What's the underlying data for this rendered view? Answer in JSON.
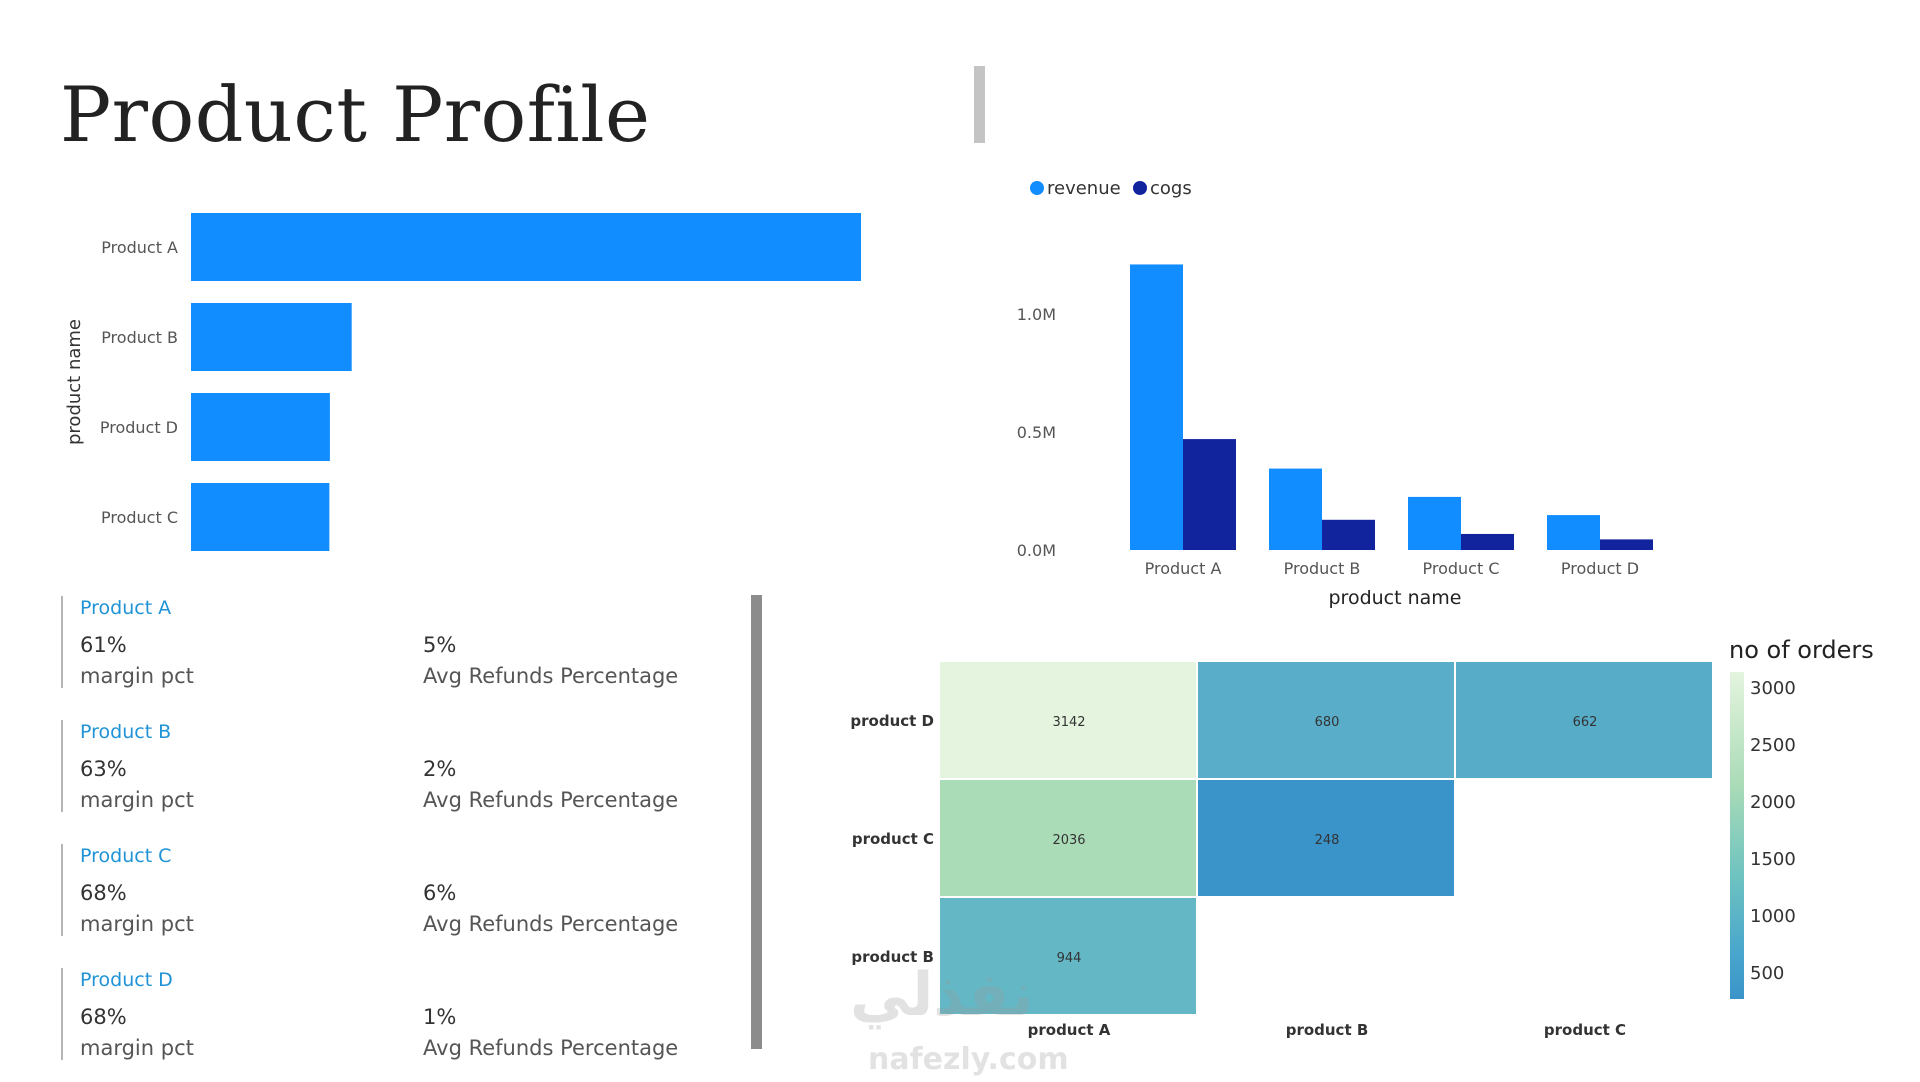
{
  "title": "Product Profile",
  "colors": {
    "revenue": "#118dff",
    "cogs": "#12239e",
    "bar": "#118dff",
    "card_title": "#1f93d6"
  },
  "chart_data": [
    {
      "type": "bar",
      "orientation": "horizontal",
      "categories": [
        "Product A",
        "Product B",
        "Product D",
        "Product C"
      ],
      "values": [
        1.23,
        0.295,
        0.255,
        0.254
      ],
      "ylabel": "product name"
    },
    {
      "type": "bar",
      "categories": [
        "Product A",
        "Product B",
        "Product C",
        "Product D"
      ],
      "series": [
        {
          "name": "revenue",
          "values": [
            1.21,
            0.345,
            0.225,
            0.148
          ]
        },
        {
          "name": "cogs",
          "values": [
            0.47,
            0.128,
            0.068,
            0.045
          ]
        }
      ],
      "xlabel": "product name",
      "y_ticks": [
        "0.0M",
        "0.5M",
        "1.0M"
      ],
      "ylim": [
        0,
        1.3
      ],
      "legend": "top-left"
    },
    {
      "type": "heatmap",
      "rows": [
        "product D",
        "product C",
        "product B"
      ],
      "cols": [
        "product A",
        "product B",
        "product C"
      ],
      "values": [
        [
          3142,
          680,
          662
        ],
        [
          2036,
          248,
          null
        ],
        [
          944,
          null,
          null
        ]
      ],
      "colorbar_title": "no of orders",
      "colorbar_ticks": [
        "3000",
        "2500",
        "2000",
        "1500",
        "1000",
        "500"
      ],
      "range": [
        248,
        3142
      ]
    }
  ],
  "cards": [
    {
      "name": "Product A",
      "margin": "61%",
      "margin_label": "margin pct",
      "refund": "5%",
      "refund_label": "Avg Refunds Percentage"
    },
    {
      "name": "Product B",
      "margin": "63%",
      "margin_label": "margin pct",
      "refund": "2%",
      "refund_label": "Avg Refunds Percentage"
    },
    {
      "name": "Product C",
      "margin": "68%",
      "margin_label": "margin pct",
      "refund": "6%",
      "refund_label": "Avg Refunds Percentage"
    },
    {
      "name": "Product D",
      "margin": "68%",
      "margin_label": "margin pct",
      "refund": "1%",
      "refund_label": "Avg Refunds Percentage"
    }
  ],
  "watermark": {
    "arabic": "نفذلي",
    "url": "nafezly.com"
  }
}
